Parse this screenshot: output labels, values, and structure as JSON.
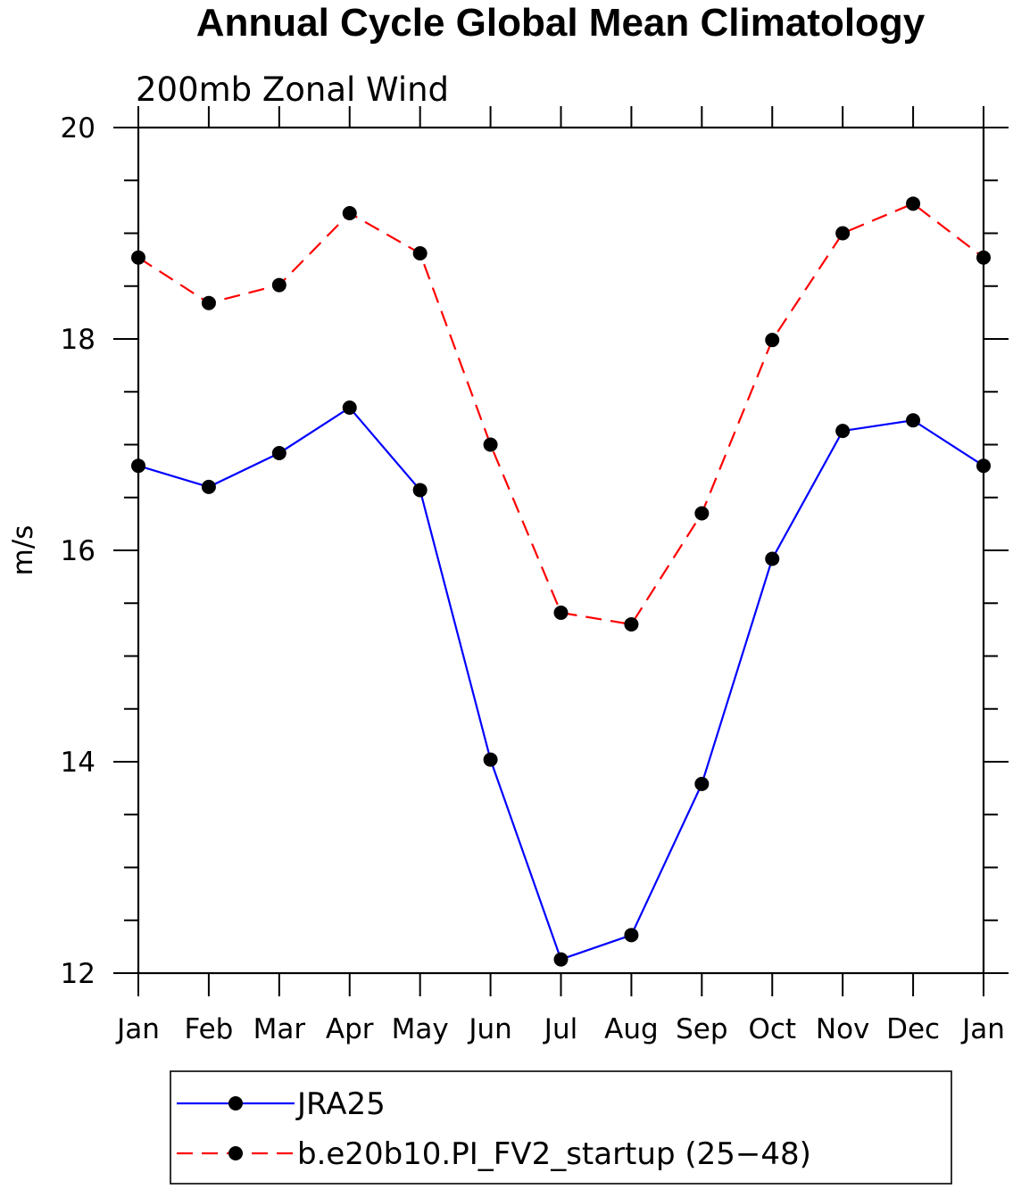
{
  "chart_data": {
    "type": "line",
    "title": "Annual Cycle Global Mean Climatology",
    "subtitle": "200mb Zonal Wind",
    "xlabel": "",
    "ylabel": "m/s",
    "categories": [
      "Jan",
      "Feb",
      "Mar",
      "Apr",
      "May",
      "Jun",
      "Jul",
      "Aug",
      "Sep",
      "Oct",
      "Nov",
      "Dec",
      "Jan"
    ],
    "ylim": [
      12,
      20
    ],
    "yticks": [
      "12",
      "14",
      "16",
      "18",
      "20"
    ],
    "grid": false,
    "legend_position": "bottom",
    "series": [
      {
        "name": "JRA25",
        "color": "#0000ff",
        "line_style": "solid",
        "marker": "filled-circle",
        "values": [
          16.8,
          16.6,
          16.92,
          17.35,
          16.57,
          14.02,
          12.13,
          12.36,
          13.79,
          15.92,
          17.13,
          17.23,
          16.8
        ]
      },
      {
        "name": "b.e20b10.PI_FV2_startup (25−48)",
        "color": "#ff0000",
        "line_style": "dashed",
        "marker": "filled-circle",
        "values": [
          18.77,
          18.34,
          18.51,
          19.19,
          18.81,
          17.0,
          15.41,
          15.3,
          16.35,
          17.99,
          19.0,
          19.28,
          18.77
        ]
      }
    ]
  }
}
